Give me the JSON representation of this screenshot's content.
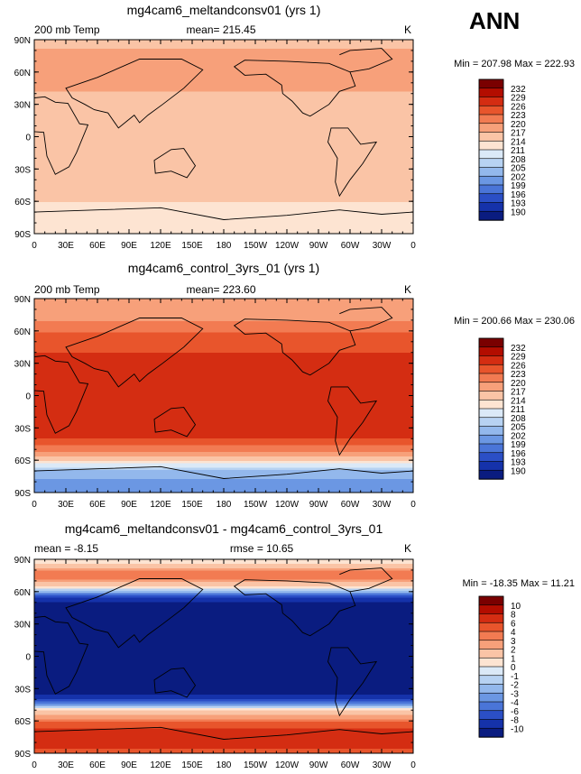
{
  "season": "ANN",
  "chart_data": [
    {
      "type": "heatmap",
      "title": "mg4cam6_meltandconsv01 (yrs 1)",
      "left_label": "200 mb Temp",
      "mean_text": "mean= 215.45",
      "right_label": "K",
      "minmax": "Min = 207.98 Max = 222.93",
      "xticks": [
        "0",
        "30E",
        "60E",
        "90E",
        "120E",
        "150E",
        "180",
        "150W",
        "120W",
        "90W",
        "60W",
        "30W",
        "0"
      ],
      "yticks": [
        "90N",
        "60N",
        "30N",
        "0",
        "30S",
        "60S",
        "90S"
      ],
      "colorbar_levels": [
        "232",
        "229",
        "226",
        "223",
        "220",
        "217",
        "214",
        "211",
        "208",
        "205",
        "202",
        "199",
        "196",
        "193",
        "190"
      ],
      "colorbar_colors": [
        "#7a0000",
        "#b30d00",
        "#d42d12",
        "#e8552c",
        "#f27b52",
        "#f7a07a",
        "#fac4a6",
        "#fde4d2",
        "#dbe9f7",
        "#b7d2f2",
        "#93b8ec",
        "#6b97e3",
        "#4a75d8",
        "#2b4fc6",
        "#1532aa",
        "#0a1c80"
      ],
      "bands": [
        {
          "lat": 90,
          "temp": 215
        },
        {
          "lat": 70,
          "temp": 220
        },
        {
          "lat": 55,
          "temp": 219
        },
        {
          "lat": 35,
          "temp": 216
        },
        {
          "lat": 10,
          "temp": 215
        },
        {
          "lat": -20,
          "temp": 215
        },
        {
          "lat": -45,
          "temp": 216
        },
        {
          "lat": -60,
          "temp": 214
        },
        {
          "lat": -70,
          "temp": 211
        },
        {
          "lat": -90,
          "temp": 211
        }
      ]
    },
    {
      "type": "heatmap",
      "title": "mg4cam6_control_3yrs_01 (yrs 1)",
      "left_label": "200 mb Temp",
      "mean_text": "mean= 223.60",
      "right_label": "K",
      "minmax": "Min = 200.66 Max = 230.06",
      "xticks": [
        "0",
        "30E",
        "60E",
        "90E",
        "120E",
        "150E",
        "180",
        "150W",
        "120W",
        "90W",
        "60W",
        "30W",
        "0"
      ],
      "yticks": [
        "90N",
        "60N",
        "30N",
        "0",
        "30S",
        "60S",
        "90S"
      ],
      "colorbar_levels": [
        "232",
        "229",
        "226",
        "223",
        "220",
        "217",
        "214",
        "211",
        "208",
        "205",
        "202",
        "199",
        "196",
        "193",
        "190"
      ],
      "colorbar_colors": [
        "#7a0000",
        "#b30d00",
        "#d42d12",
        "#e8552c",
        "#f27b52",
        "#f7a07a",
        "#fac4a6",
        "#fde4d2",
        "#dbe9f7",
        "#b7d2f2",
        "#93b8ec",
        "#6b97e3",
        "#4a75d8",
        "#2b4fc6",
        "#1532aa",
        "#0a1c80"
      ],
      "bands": [
        {
          "lat": 90,
          "temp": 217
        },
        {
          "lat": 70,
          "temp": 220
        },
        {
          "lat": 55,
          "temp": 224
        },
        {
          "lat": 40,
          "temp": 226
        },
        {
          "lat": 25,
          "temp": 228
        },
        {
          "lat": 0,
          "temp": 227
        },
        {
          "lat": -25,
          "temp": 228
        },
        {
          "lat": -40,
          "temp": 226
        },
        {
          "lat": -50,
          "temp": 221
        },
        {
          "lat": -60,
          "temp": 214
        },
        {
          "lat": -70,
          "temp": 205
        },
        {
          "lat": -80,
          "temp": 201
        },
        {
          "lat": -90,
          "temp": 200
        }
      ]
    },
    {
      "type": "heatmap",
      "title": "mg4cam6_meltandconsv01 - mg4cam6_control_3yrs_01",
      "left_label": "mean =  -8.15",
      "mean_text": "rmse =  10.65",
      "right_label": "K",
      "minmax": "Min = -18.35 Max =  11.21",
      "xticks": [
        "0",
        "30E",
        "60E",
        "90E",
        "120E",
        "150E",
        "180",
        "150W",
        "120W",
        "90W",
        "60W",
        "30W",
        "0"
      ],
      "yticks": [
        "90N",
        "60N",
        "30N",
        "0",
        "30S",
        "60S",
        "90S"
      ],
      "colorbar_levels": [
        "10",
        "8",
        "6",
        "4",
        "3",
        "2",
        "1",
        "0",
        "-1",
        "-2",
        "-3",
        "-4",
        "-6",
        "-8",
        "-10"
      ],
      "colorbar_colors": [
        "#7a0000",
        "#b30d00",
        "#d42d12",
        "#e8552c",
        "#f27b52",
        "#f7a07a",
        "#fac4a6",
        "#fde4d2",
        "#dbe9f7",
        "#b7d2f2",
        "#93b8ec",
        "#6b97e3",
        "#4a75d8",
        "#2b4fc6",
        "#1532aa",
        "#0a1c80"
      ],
      "bands": [
        {
          "lat": 90,
          "temp": 0
        },
        {
          "lat": 75,
          "temp": 4
        },
        {
          "lat": 65,
          "temp": 1
        },
        {
          "lat": 58,
          "temp": -4
        },
        {
          "lat": 50,
          "temp": -11
        },
        {
          "lat": -35,
          "temp": -11
        },
        {
          "lat": -45,
          "temp": -4
        },
        {
          "lat": -50,
          "temp": 1
        },
        {
          "lat": -58,
          "temp": 3
        },
        {
          "lat": -70,
          "temp": 7
        },
        {
          "lat": -80,
          "temp": 8
        },
        {
          "lat": -90,
          "temp": 4
        }
      ]
    }
  ]
}
